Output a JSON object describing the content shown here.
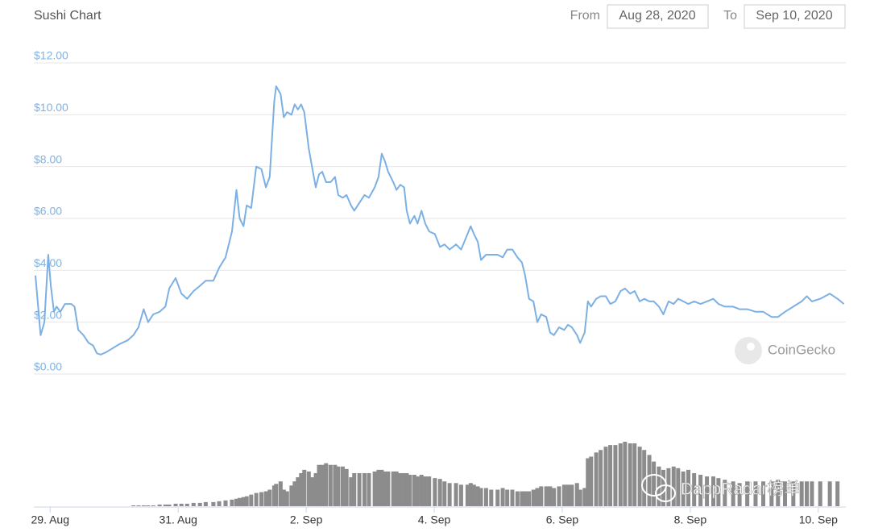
{
  "chart_data": {
    "type": "line",
    "title": "Sushi Chart",
    "from_label": "From",
    "from_date": "Aug 28, 2020",
    "to_label": "To",
    "to_date": "Sep 10, 2020",
    "credit": "CoinGecko",
    "watermark": "DappRadar榜单",
    "grid": true,
    "xlim": [
      28.77,
      41.43
    ],
    "xticks": [
      {
        "value": 29,
        "label": "29. Aug"
      },
      {
        "value": 31,
        "label": "31. Aug"
      },
      {
        "value": 33,
        "label": "2. Sep"
      },
      {
        "value": 35,
        "label": "4. Sep"
      },
      {
        "value": 37,
        "label": "6. Sep"
      },
      {
        "value": 39,
        "label": "8. Sep"
      },
      {
        "value": 41,
        "label": "10. Sep"
      }
    ],
    "ylim": [
      0,
      12
    ],
    "yticks": [
      {
        "value": 0,
        "label": "$0.00"
      },
      {
        "value": 2,
        "label": "$2.00"
      },
      {
        "value": 4,
        "label": "$4.00"
      },
      {
        "value": 6,
        "label": "$6.00"
      },
      {
        "value": 8,
        "label": "$8.00"
      },
      {
        "value": 10,
        "label": "$10.00"
      },
      {
        "value": 12,
        "label": "$12.00"
      }
    ],
    "x": [
      28.77,
      28.85,
      28.91,
      28.97,
      29.01,
      29.06,
      29.1,
      29.16,
      29.23,
      29.33,
      29.38,
      29.44,
      29.52,
      29.6,
      29.67,
      29.73,
      29.79,
      29.88,
      29.98,
      30.08,
      30.21,
      30.3,
      30.38,
      30.46,
      30.53,
      30.61,
      30.71,
      30.8,
      30.86,
      30.96,
      31.05,
      31.14,
      31.24,
      31.34,
      31.43,
      31.55,
      31.64,
      31.74,
      31.84,
      31.91,
      31.96,
      32.02,
      32.07,
      32.14,
      32.22,
      32.3,
      32.37,
      32.43,
      32.5,
      32.53,
      32.6,
      32.65,
      32.7,
      32.77,
      32.82,
      32.87,
      32.92,
      32.97,
      33.04,
      33.09,
      33.15,
      33.2,
      33.25,
      33.31,
      33.38,
      33.45,
      33.5,
      33.57,
      33.63,
      33.7,
      33.75,
      33.83,
      33.91,
      33.98,
      34.07,
      34.13,
      34.18,
      34.23,
      34.28,
      34.36,
      34.41,
      34.47,
      34.53,
      34.57,
      34.62,
      34.69,
      34.74,
      34.8,
      34.86,
      34.92,
      35.01,
      35.09,
      35.16,
      35.24,
      35.34,
      35.42,
      35.52,
      35.57,
      35.62,
      35.68,
      35.73,
      35.81,
      35.89,
      35.99,
      36.07,
      36.14,
      36.22,
      36.3,
      36.37,
      36.42,
      36.48,
      36.55,
      36.61,
      36.67,
      36.75,
      36.81,
      36.87,
      36.95,
      37.03,
      37.09,
      37.15,
      37.23,
      37.28,
      37.35,
      37.4,
      37.45,
      37.53,
      37.6,
      37.68,
      37.75,
      37.83,
      37.91,
      37.98,
      38.06,
      38.13,
      38.21,
      38.28,
      38.36,
      38.43,
      38.51,
      38.58,
      38.66,
      38.74,
      38.81,
      38.89,
      38.97,
      39.06,
      39.16,
      39.26,
      39.36,
      39.44,
      39.54,
      39.67,
      39.77,
      39.89,
      40.02,
      40.14,
      40.27,
      40.37,
      40.48,
      40.61,
      40.74,
      40.82,
      40.9,
      41.03,
      41.18,
      41.3,
      41.4
    ],
    "price": {
      "color": "#7cb0e4",
      "values": [
        3.8,
        1.5,
        2.0,
        4.6,
        3.4,
        2.4,
        2.6,
        2.4,
        2.7,
        2.7,
        2.6,
        1.7,
        1.5,
        1.2,
        1.1,
        0.8,
        0.75,
        0.85,
        1.0,
        1.15,
        1.3,
        1.5,
        1.8,
        2.5,
        2.0,
        2.3,
        2.4,
        2.6,
        3.3,
        3.7,
        3.1,
        2.9,
        3.2,
        3.4,
        3.6,
        3.6,
        4.1,
        4.5,
        5.5,
        7.1,
        6.0,
        5.7,
        6.5,
        6.4,
        8.0,
        7.9,
        7.2,
        7.6,
        10.5,
        11.1,
        10.8,
        9.9,
        10.1,
        10.0,
        10.4,
        10.2,
        10.4,
        10.1,
        8.7,
        8.0,
        7.2,
        7.7,
        7.8,
        7.4,
        7.4,
        7.6,
        6.9,
        6.8,
        6.9,
        6.5,
        6.3,
        6.6,
        6.9,
        6.8,
        7.2,
        7.6,
        8.5,
        8.2,
        7.8,
        7.4,
        7.1,
        7.3,
        7.2,
        6.3,
        5.8,
        6.1,
        5.8,
        6.3,
        5.8,
        5.5,
        5.4,
        4.9,
        5.0,
        4.8,
        5.0,
        4.8,
        5.4,
        5.7,
        5.4,
        5.1,
        4.4,
        4.6,
        4.6,
        4.6,
        4.5,
        4.8,
        4.8,
        4.5,
        4.3,
        3.8,
        2.9,
        2.8,
        2.0,
        2.3,
        2.2,
        1.6,
        1.5,
        1.8,
        1.7,
        1.9,
        1.8,
        1.5,
        1.2,
        1.6,
        2.8,
        2.6,
        2.9,
        3.0,
        3.0,
        2.7,
        2.8,
        3.2,
        3.3,
        3.1,
        3.2,
        2.8,
        2.9,
        2.8,
        2.8,
        2.6,
        2.3,
        2.8,
        2.7,
        2.9,
        2.8,
        2.7,
        2.8,
        2.7,
        2.8,
        2.9,
        2.7,
        2.6,
        2.6,
        2.5,
        2.5,
        2.4,
        2.4,
        2.2,
        2.2,
        2.4,
        2.6,
        2.8,
        3.0,
        2.8,
        2.9,
        3.1,
        2.9,
        2.7
      ]
    },
    "volume": {
      "color": "#8c8c8c",
      "values": [
        0,
        0,
        0,
        0,
        0,
        0,
        0,
        0,
        0,
        0,
        0,
        0,
        0,
        0,
        0,
        0,
        0,
        0,
        0,
        0,
        0,
        1,
        1,
        1,
        1,
        1,
        2,
        2,
        2,
        3,
        3,
        3,
        4,
        4,
        5,
        5,
        6,
        7,
        8,
        9,
        10,
        11,
        12,
        14,
        16,
        17,
        18,
        20,
        25,
        27,
        30,
        20,
        18,
        25,
        30,
        35,
        40,
        44,
        42,
        35,
        40,
        50,
        50,
        52,
        50,
        50,
        48,
        48,
        45,
        35,
        40,
        40,
        40,
        40,
        42,
        44,
        44,
        42,
        42,
        42,
        42,
        40,
        40,
        40,
        38,
        38,
        36,
        38,
        36,
        36,
        34,
        33,
        30,
        28,
        28,
        26,
        26,
        28,
        26,
        24,
        22,
        22,
        20,
        20,
        22,
        20,
        20,
        18,
        18,
        18,
        18,
        20,
        22,
        24,
        24,
        24,
        22,
        24,
        26,
        26,
        26,
        28,
        20,
        22,
        58,
        60,
        65,
        68,
        72,
        74,
        74,
        76,
        78,
        76,
        76,
        72,
        68,
        62,
        54,
        48,
        44,
        46,
        48,
        46,
        42,
        44,
        40,
        38,
        36,
        36,
        34,
        32,
        30,
        28,
        30,
        30,
        30,
        30,
        32,
        30,
        30,
        30,
        30,
        30,
        30,
        30,
        30
      ]
    }
  }
}
